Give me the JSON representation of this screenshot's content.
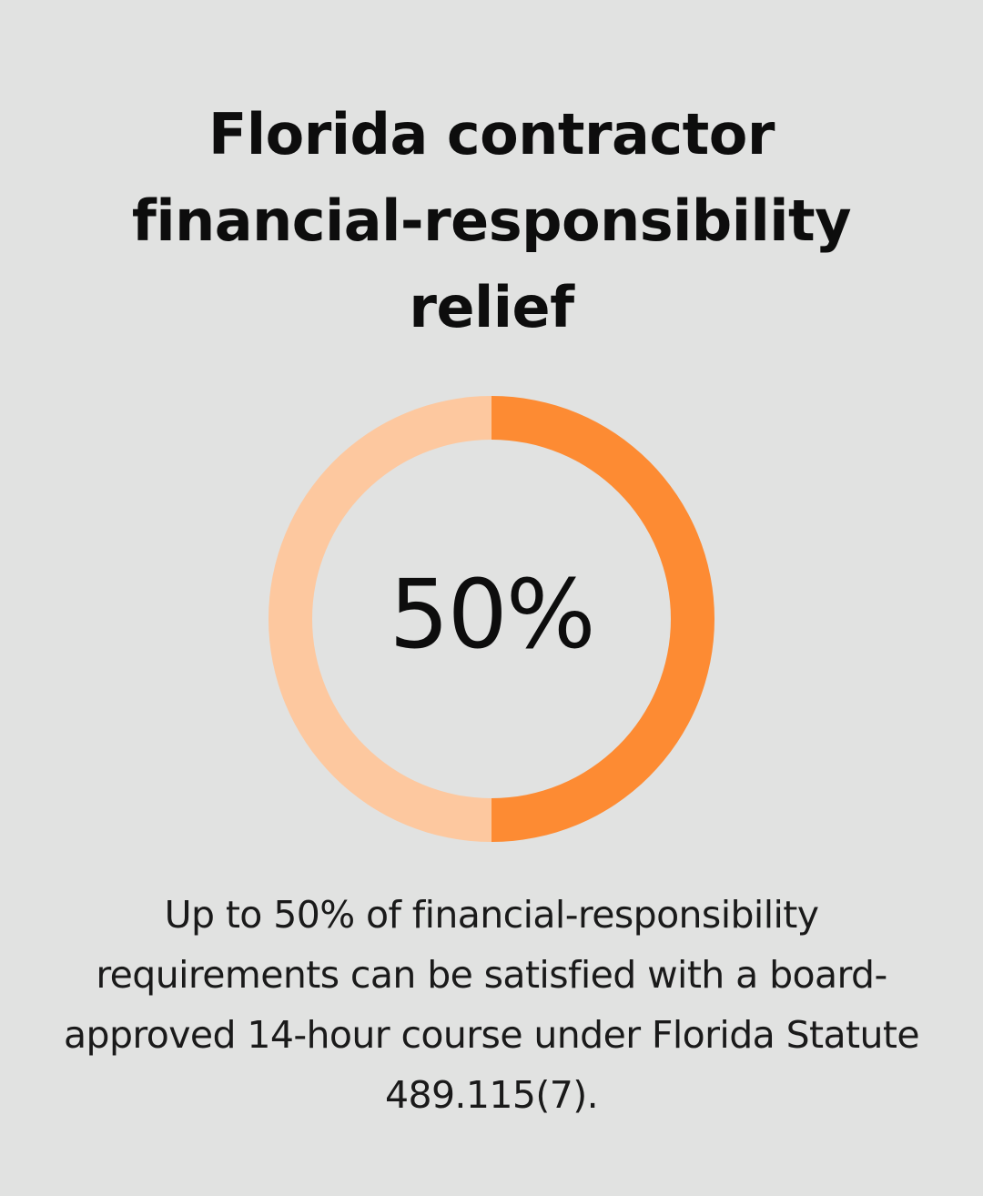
{
  "title": "Florida contractor financial-responsibility relief",
  "caption": "Up to 50% of financial-responsibility requirements can be satisfied with a board-approved 14-hour course under Florida Statute 489.115(7).",
  "colors": {
    "background": "#e1e2e1",
    "filled": "#fd8b33",
    "remaining": "#fdc89f"
  },
  "chart_data": {
    "type": "pie",
    "style": "donut",
    "value_label": "50%",
    "values": [
      50,
      50
    ],
    "colors": [
      "#fd8b33",
      "#fdc89f"
    ]
  }
}
